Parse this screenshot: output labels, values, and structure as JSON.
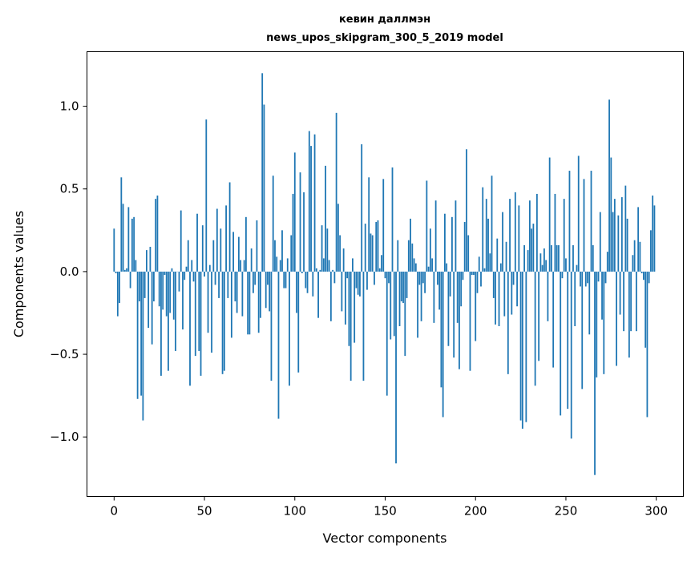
{
  "chart_data": {
    "type": "bar",
    "title": [
      "кевин даллмэн",
      "news_upos_skipgram_300_5_2019 model"
    ],
    "xlabel": "Vector components",
    "ylabel": "Components values",
    "xlim": [
      -15,
      315
    ],
    "ylim": [
      -1.36,
      1.33
    ],
    "xticks": [
      0,
      50,
      100,
      150,
      200,
      250,
      300
    ],
    "xtick_labels": [
      "0",
      "50",
      "100",
      "150",
      "200",
      "250",
      "300"
    ],
    "yticks": [
      -1.0,
      -0.5,
      0.0,
      0.5,
      1.0
    ],
    "ytick_labels": [
      "−1.0",
      "−0.5",
      "0.0",
      "0.5",
      "1.0"
    ],
    "grid": false,
    "color": "#1f77b4",
    "values": [
      0.26,
      -0.01,
      -0.27,
      -0.19,
      0.57,
      0.41,
      0.01,
      0.02,
      0.39,
      -0.1,
      0.32,
      0.33,
      0.07,
      -0.77,
      -0.18,
      -0.75,
      -0.9,
      -0.16,
      0.13,
      -0.34,
      0.15,
      -0.44,
      -0.18,
      0.44,
      0.46,
      -0.21,
      -0.63,
      -0.23,
      -0.02,
      -0.27,
      -0.6,
      -0.25,
      0.02,
      -0.29,
      -0.48,
      0.0,
      -0.12,
      0.37,
      -0.35,
      -0.05,
      0.03,
      0.19,
      -0.69,
      0.07,
      -0.06,
      -0.51,
      0.35,
      -0.48,
      -0.63,
      0.28,
      -0.03,
      0.92,
      -0.37,
      0.04,
      -0.49,
      0.19,
      -0.08,
      0.38,
      -0.16,
      0.26,
      -0.62,
      -0.6,
      0.4,
      -0.16,
      0.54,
      -0.4,
      0.24,
      -0.18,
      -0.25,
      0.21,
      0.07,
      -0.27,
      0.07,
      0.33,
      -0.38,
      -0.38,
      0.14,
      -0.13,
      -0.08,
      0.31,
      -0.37,
      -0.28,
      1.2,
      1.01,
      -0.22,
      -0.08,
      -0.24,
      -0.66,
      0.58,
      0.19,
      0.09,
      -0.89,
      0.07,
      0.25,
      -0.1,
      -0.1,
      0.08,
      -0.69,
      0.22,
      0.47,
      0.72,
      -0.25,
      -0.61,
      0.6,
      -0.01,
      0.48,
      -0.1,
      -0.13,
      0.85,
      0.76,
      -0.15,
      0.83,
      0.02,
      -0.28,
      0.01,
      0.28,
      0.08,
      0.64,
      0.26,
      0.07,
      -0.3,
      0.01,
      -0.07,
      0.96,
      0.41,
      0.22,
      -0.24,
      0.14,
      -0.32,
      -0.04,
      -0.45,
      -0.66,
      0.08,
      -0.43,
      -0.1,
      -0.14,
      -0.15,
      0.77,
      -0.66,
      0.29,
      -0.11,
      0.57,
      0.23,
      0.22,
      -0.08,
      0.3,
      0.31,
      0.02,
      0.1,
      0.56,
      -0.04,
      -0.75,
      -0.07,
      -0.41,
      0.63,
      -0.39,
      -1.16,
      0.19,
      -0.33,
      -0.18,
      -0.19,
      -0.51,
      -0.16,
      0.19,
      0.32,
      0.17,
      0.08,
      0.05,
      -0.4,
      -0.08,
      -0.3,
      -0.07,
      -0.13,
      0.55,
      0.03,
      0.26,
      0.08,
      -0.31,
      0.43,
      -0.08,
      -0.23,
      -0.7,
      -0.88,
      0.35,
      0.05,
      -0.45,
      -0.15,
      0.33,
      -0.52,
      0.43,
      -0.31,
      -0.59,
      -0.21,
      -0.05,
      0.3,
      0.74,
      0.22,
      -0.6,
      -0.02,
      -0.02,
      -0.42,
      -0.13,
      0.09,
      -0.09,
      0.51,
      0.02,
      0.44,
      0.32,
      0.11,
      0.58,
      -0.16,
      -0.32,
      0.2,
      -0.33,
      0.05,
      0.36,
      -0.27,
      0.18,
      -0.62,
      0.44,
      -0.26,
      -0.08,
      0.48,
      -0.21,
      0.4,
      -0.9,
      -0.95,
      0.16,
      -0.91,
      0.13,
      0.43,
      0.26,
      0.29,
      -0.69,
      0.47,
      -0.54,
      0.11,
      0.04,
      0.14,
      0.07,
      -0.3,
      0.69,
      0.16,
      -0.58,
      0.47,
      0.16,
      0.16,
      -0.87,
      -0.04,
      0.44,
      0.08,
      -0.83,
      0.61,
      -1.01,
      0.16,
      -0.33,
      0.04,
      0.7,
      -0.09,
      -0.71,
      0.56,
      -0.09,
      -0.07,
      -0.38,
      0.61,
      0.16,
      -1.23,
      -0.64,
      -0.06,
      0.36,
      -0.29,
      -0.62,
      -0.07,
      0.12,
      1.04,
      0.69,
      0.36,
      0.44,
      -0.57,
      0.34,
      -0.26,
      0.45,
      -0.36,
      0.52,
      0.32,
      -0.52,
      -0.36,
      0.1,
      0.19,
      -0.36,
      0.39,
      0.18,
      -0.01,
      -0.05,
      -0.46,
      -0.88,
      -0.07,
      0.25,
      0.46,
      0.4
    ]
  }
}
